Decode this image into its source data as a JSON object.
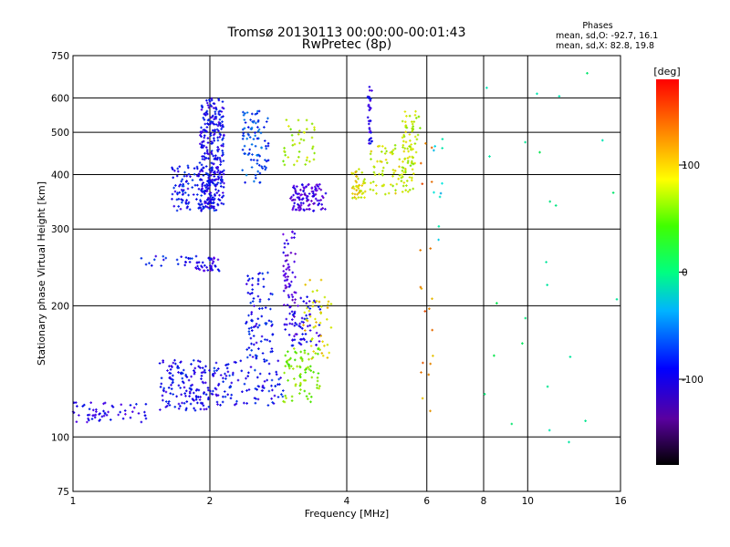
{
  "chart_data": {
    "type": "scatter",
    "title": "Tromsø 20130113 00:00:00-00:01:43",
    "subtitle": "RwPretec (8p)",
    "xlabel": "Frequency [MHz]",
    "ylabel": "Stationary phase Virtual Height [km]",
    "x_scale": "log",
    "y_scale": "log",
    "xlim": [
      1,
      16
    ],
    "ylim": [
      75,
      750
    ],
    "x_ticks": [
      "1",
      "2",
      "4",
      "6",
      "8",
      "10",
      "16"
    ],
    "y_ticks": [
      "75",
      "100",
      "200",
      "300",
      "400",
      "500",
      "600",
      "750"
    ],
    "grid": true,
    "phase_stats": {
      "heading": "Phases",
      "line_o": "mean, sd,O: -92.7, 16.1",
      "line_x": "mean, sd,X:  82.8, 19.8"
    },
    "colorbar": {
      "label": "[deg]",
      "range": [
        -180,
        180
      ],
      "ticks": [
        "100",
        "0",
        "-100"
      ]
    },
    "clusters": [
      {
        "x": [
          0.98,
          1.45
        ],
        "y": [
          108,
          120
        ],
        "phase": -110,
        "n": 60
      },
      {
        "x": [
          1.55,
          2.0
        ],
        "y": [
          115,
          150
        ],
        "phase": -105,
        "n": 140
      },
      {
        "x": [
          2.0,
          2.9
        ],
        "y": [
          118,
          150
        ],
        "phase": -100,
        "n": 110
      },
      {
        "x": [
          2.4,
          2.75
        ],
        "y": [
          150,
          240
        ],
        "phase": -100,
        "n": 90
      },
      {
        "x": [
          1.65,
          2.1
        ],
        "y": [
          330,
          420
        ],
        "phase": -100,
        "n": 140
      },
      {
        "x": [
          1.9,
          2.15
        ],
        "y": [
          330,
          600
        ],
        "phase": -105,
        "n": 280
      },
      {
        "x": [
          2.35,
          2.7
        ],
        "y": [
          380,
          560
        ],
        "phase": -80,
        "n": 90
      },
      {
        "x": [
          1.85,
          2.1
        ],
        "y": [
          240,
          260
        ],
        "phase": -115,
        "n": 35
      },
      {
        "x": [
          1.4,
          1.9
        ],
        "y": [
          245,
          260
        ],
        "phase": -100,
        "n": 25
      },
      {
        "x": [
          2.9,
          3.1
        ],
        "y": [
          170,
          300
        ],
        "phase": -125,
        "n": 70
      },
      {
        "x": [
          3.0,
          3.6
        ],
        "y": [
          330,
          380
        ],
        "phase": -125,
        "n": 110
      },
      {
        "x": [
          3.0,
          3.5
        ],
        "y": [
          160,
          210
        ],
        "phase": -110,
        "n": 60
      },
      {
        "x": [
          2.9,
          3.5
        ],
        "y": [
          120,
          160
        ],
        "phase": 75,
        "n": 80
      },
      {
        "x": [
          3.2,
          3.7
        ],
        "y": [
          150,
          230
        ],
        "phase": 115,
        "n": 45
      },
      {
        "x": [
          2.9,
          3.4
        ],
        "y": [
          420,
          540
        ],
        "phase": 90,
        "n": 40
      },
      {
        "x": [
          4.1,
          4.4
        ],
        "y": [
          350,
          420
        ],
        "phase": 110,
        "n": 45
      },
      {
        "x": [
          4.5,
          5.6
        ],
        "y": [
          360,
          470
        ],
        "phase": 100,
        "n": 90
      },
      {
        "x": [
          5.3,
          5.8
        ],
        "y": [
          400,
          560
        ],
        "phase": 95,
        "n": 55
      },
      {
        "x": [
          4.45,
          4.55
        ],
        "y": [
          470,
          640
        ],
        "phase": -110,
        "n": 35
      },
      {
        "x": [
          5.8,
          6.2
        ],
        "y": [
          110,
          500
        ],
        "phase": 140,
        "n": 20
      },
      {
        "x": [
          6.2,
          6.6
        ],
        "y": [
          250,
          500
        ],
        "phase": -30,
        "n": 10
      },
      {
        "x": [
          8.0,
          16.0
        ],
        "y": [
          90,
          700
        ],
        "phase": 0,
        "n": 25
      }
    ]
  }
}
